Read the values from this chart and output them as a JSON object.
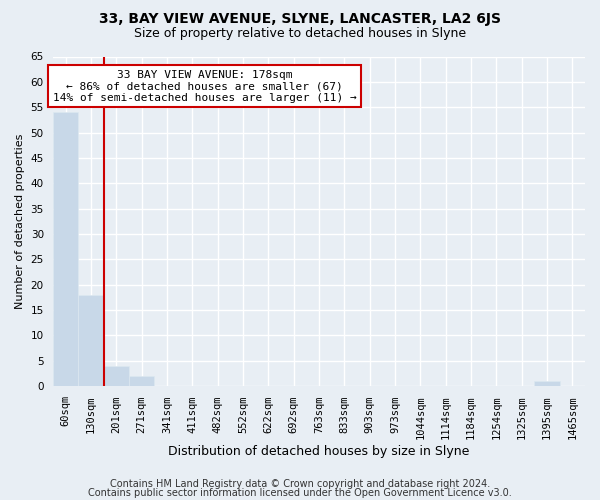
{
  "title1": "33, BAY VIEW AVENUE, SLYNE, LANCASTER, LA2 6JS",
  "title2": "Size of property relative to detached houses in Slyne",
  "xlabel": "Distribution of detached houses by size in Slyne",
  "ylabel": "Number of detached properties",
  "bin_labels": [
    "60sqm",
    "130sqm",
    "201sqm",
    "271sqm",
    "341sqm",
    "411sqm",
    "482sqm",
    "552sqm",
    "622sqm",
    "692sqm",
    "763sqm",
    "833sqm",
    "903sqm",
    "973sqm",
    "1044sqm",
    "1114sqm",
    "1184sqm",
    "1254sqm",
    "1325sqm",
    "1395sqm",
    "1465sqm"
  ],
  "bar_values": [
    54,
    18,
    4,
    2,
    0,
    0,
    0,
    0,
    0,
    0,
    0,
    0,
    0,
    0,
    0,
    0,
    0,
    0,
    0,
    1,
    0
  ],
  "bar_color": "#c8d8e8",
  "bar_edge_color": "#dce8f0",
  "reference_line_x": 1.5,
  "reference_line_color": "#cc0000",
  "annotation_title": "33 BAY VIEW AVENUE: 178sqm",
  "annotation_line1": "← 86% of detached houses are smaller (67)",
  "annotation_line2": "14% of semi-detached houses are larger (11) →",
  "annotation_box_facecolor": "#ffffff",
  "annotation_box_edgecolor": "#cc0000",
  "ylim": [
    0,
    65
  ],
  "yticks": [
    0,
    5,
    10,
    15,
    20,
    25,
    30,
    35,
    40,
    45,
    50,
    55,
    60,
    65
  ],
  "footer1": "Contains HM Land Registry data © Crown copyright and database right 2024.",
  "footer2": "Contains public sector information licensed under the Open Government Licence v3.0.",
  "background_color": "#e8eef4",
  "plot_background_color": "#e8eef4",
  "title1_fontsize": 10,
  "title2_fontsize": 9,
  "ylabel_fontsize": 8,
  "xlabel_fontsize": 9,
  "footer_fontsize": 7,
  "grid_color": "#ffffff",
  "tick_label_fontsize": 7.5,
  "annotation_fontsize": 8
}
